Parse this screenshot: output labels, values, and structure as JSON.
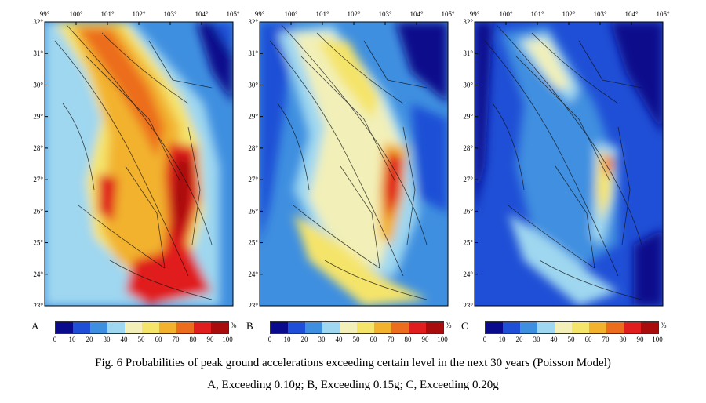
{
  "lon_ticks": [
    "99°",
    "100°",
    "101°",
    "102°",
    "103°",
    "104°",
    "105°"
  ],
  "lat_ticks": [
    "32°",
    "31°",
    "30°",
    "29°",
    "28°",
    "27°",
    "26°",
    "25°",
    "24°",
    "23°"
  ],
  "panels": [
    {
      "letter": "A",
      "exceedance_g": 0.1
    },
    {
      "letter": "B",
      "exceedance_g": 0.15
    },
    {
      "letter": "C",
      "exceedance_g": 0.2
    }
  ],
  "legend": {
    "unit": "%",
    "labels": [
      "0",
      "10",
      "20",
      "30",
      "40",
      "50",
      "60",
      "70",
      "80",
      "90",
      "100"
    ],
    "colors": [
      "#0a0a8c",
      "#1f4fd6",
      "#3f8fe0",
      "#9fd7f0",
      "#f2f0b8",
      "#f5e46a",
      "#f2b22e",
      "#ec6d1e",
      "#e01e1e",
      "#a80c0c"
    ]
  },
  "caption": {
    "line1": "Fig. 6 Probabilities of peak ground accelerations exceeding certain level in the next 30 years (Poisson Model)",
    "line2": "A, Exceeding 0.10g; B, Exceeding 0.15g; C, Exceeding 0.20g"
  }
}
